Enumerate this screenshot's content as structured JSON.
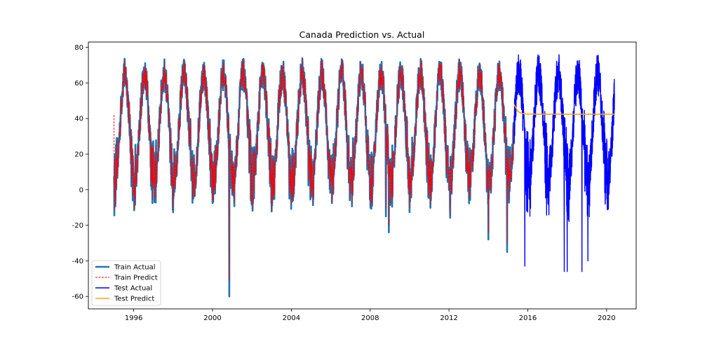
{
  "chart_data": {
    "type": "line",
    "title": "Canada Prediction vs. Actual",
    "xlabel": "",
    "ylabel": "",
    "xlim": [
      1993.7,
      2021.5
    ],
    "ylim": [
      -67,
      83
    ],
    "x_ticks": [
      "1996",
      "2000",
      "2004",
      "2008",
      "2012",
      "2016",
      "2020"
    ],
    "y_ticks": [
      "-60",
      "-40",
      "-20",
      "0",
      "20",
      "40",
      "60",
      "80"
    ],
    "legend_position": "lower-left",
    "grid": false,
    "series": [
      {
        "name": "Train Actual",
        "color": "#1f77b4",
        "style": "solid-thick",
        "approx_data": {
          "x_range": [
            1995.0,
            2015.3
          ],
          "seasonal_mean": 35,
          "seasonal_amplitude": 30,
          "typical_winter_low": 8,
          "typical_summer_high": 70,
          "extreme_lows": [
            {
              "x": 1995.95,
              "y": -6
            },
            {
              "x": 2000.85,
              "y": -60
            },
            {
              "x": 2003.9,
              "y": -5
            },
            {
              "x": 2008.8,
              "y": -15
            },
            {
              "x": 2008.95,
              "y": -24
            },
            {
              "x": 2014.0,
              "y": -28
            },
            {
              "x": 2014.95,
              "y": -35
            }
          ]
        }
      },
      {
        "name": "Train Predict",
        "color": "#ff0000",
        "style": "dashed",
        "approx_data": {
          "x_range": [
            1995.0,
            2015.3
          ],
          "note": "closely follows Train Actual"
        }
      },
      {
        "name": "Test Actual",
        "color": "#0000ff",
        "style": "solid",
        "approx_data": {
          "x_range": [
            2015.3,
            2020.4
          ],
          "seasonal_mean": 35,
          "seasonal_amplitude": 30,
          "extreme_lows": [
            {
              "x": 2015.85,
              "y": -43
            },
            {
              "x": 2017.85,
              "y": -46
            },
            {
              "x": 2018.0,
              "y": -46
            },
            {
              "x": 2018.75,
              "y": -46
            },
            {
              "x": 2019.05,
              "y": -40
            }
          ]
        }
      },
      {
        "name": "Test Predict",
        "color": "#ffa500",
        "style": "solid",
        "approx_data": {
          "x": [
            2015.3,
            2015.5,
            2015.7,
            2016.0,
            2017.0,
            2018.0,
            2019.0,
            2020.4
          ],
          "y": [
            48,
            44,
            42.8,
            42.5,
            42.4,
            42.4,
            42.4,
            42.4
          ]
        }
      }
    ]
  }
}
